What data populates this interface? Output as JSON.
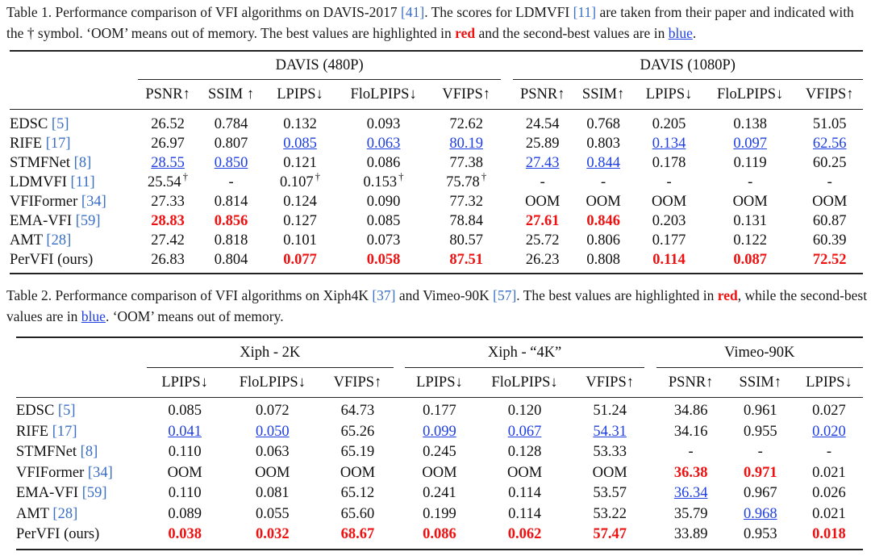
{
  "table1": {
    "caption": {
      "prefix": "Table 1. Performance comparison of VFI algorithms on DAVIS-2017 ",
      "cite_davis": "[41]",
      "mid1": ". The scores for LDMVFI ",
      "cite_ldmvfi": "[11]",
      "mid2": " are taken from their paper and indicated with the † symbol. ‘OOM’ means out of memory. The best values are highlighted in ",
      "red_word": "red",
      "mid3": " and the second-best values are in ",
      "blue_word": "blue",
      "suffix": "."
    },
    "groups": [
      "DAVIS (480P)",
      "DAVIS (1080P)"
    ],
    "metrics": [
      "PSNR↑",
      "SSIM ↑",
      "LPIPS↓",
      "FloLPIPS↓",
      "VFIPS↑",
      "PSNR↑",
      "SSIM↑",
      "LPIPS↓",
      "FloLPIPS↓",
      "VFIPS↑"
    ],
    "rows": [
      {
        "name": "EDSC",
        "cite": "[5]",
        "values": [
          "26.52",
          "0.784",
          "0.132",
          "0.093",
          "72.62",
          "24.54",
          "0.768",
          "0.205",
          "0.138",
          "51.05"
        ]
      },
      {
        "name": "RIFE",
        "cite": "[17]",
        "values": [
          "26.97",
          "0.807",
          "0.085",
          "0.063",
          "80.19",
          "25.89",
          "0.803",
          "0.134",
          "0.097",
          "62.56"
        ]
      },
      {
        "name": "STMFNet",
        "cite": "[8]",
        "values": [
          "28.55",
          "0.850",
          "0.121",
          "0.086",
          "77.38",
          "27.43",
          "0.844",
          "0.178",
          "0.119",
          "60.25"
        ]
      },
      {
        "name": "LDMVFI",
        "cite": "[11]",
        "values": [
          "25.54",
          "-",
          "0.107",
          "0.153",
          "75.78",
          "-",
          "-",
          "-",
          "-",
          "-"
        ],
        "dagger": "†"
      },
      {
        "name": "VFIFormer",
        "cite": "[34]",
        "values": [
          "27.33",
          "0.814",
          "0.124",
          "0.090",
          "77.32",
          "OOM",
          "OOM",
          "OOM",
          "OOM",
          "OOM"
        ]
      },
      {
        "name": "EMA-VFI",
        "cite": "[59]",
        "values": [
          "28.83",
          "0.856",
          "0.127",
          "0.085",
          "78.84",
          "27.61",
          "0.846",
          "0.203",
          "0.131",
          "60.87"
        ]
      },
      {
        "name": "AMT",
        "cite": "[28]",
        "values": [
          "27.42",
          "0.818",
          "0.101",
          "0.073",
          "80.57",
          "25.72",
          "0.806",
          "0.177",
          "0.122",
          "60.39"
        ]
      },
      {
        "name": "PerVFI (ours)",
        "cite": "",
        "values": [
          "26.83",
          "0.804",
          "0.077",
          "0.058",
          "87.51",
          "26.23",
          "0.808",
          "0.114",
          "0.087",
          "72.52"
        ]
      }
    ]
  },
  "table2": {
    "caption": {
      "prefix": "Table 2. Performance comparison of VFI algorithms on Xiph4K ",
      "cite_xiph": "[37]",
      "mid1": " and Vimeo-90K ",
      "cite_vimeo": "[57]",
      "mid2": ". The best values are highlighted in ",
      "red_word": "red",
      "mid3": ", while the second-best values are in ",
      "blue_word": "blue",
      "suffix": ". ‘OOM’ means out of memory."
    },
    "groups": [
      "Xiph - 2K",
      "Xiph - “4K”",
      "Vimeo-90K"
    ],
    "metrics": [
      "LPIPS↓",
      "FloLPIPS↓",
      "VFIPS↑",
      "LPIPS↓",
      "FloLPIPS↓",
      "VFIPS↑",
      "PSNR↑",
      "SSIM↑",
      "LPIPS↓"
    ],
    "rows": [
      {
        "name": "EDSC",
        "cite": "[5]",
        "values": [
          "0.085",
          "0.072",
          "64.73",
          "0.177",
          "0.120",
          "51.24",
          "34.86",
          "0.961",
          "0.027"
        ]
      },
      {
        "name": "RIFE",
        "cite": "[17]",
        "values": [
          "0.041",
          "0.050",
          "65.26",
          "0.099",
          "0.067",
          "54.31",
          "34.16",
          "0.955",
          "0.020"
        ]
      },
      {
        "name": "STMFNet",
        "cite": "[8]",
        "values": [
          "0.110",
          "0.063",
          "65.19",
          "0.245",
          "0.128",
          "53.33",
          "-",
          "-",
          "-"
        ]
      },
      {
        "name": "VFIFormer",
        "cite": "[34]",
        "values": [
          "OOM",
          "OOM",
          "OOM",
          "OOM",
          "OOM",
          "OOM",
          "36.38",
          "0.971",
          "0.021"
        ]
      },
      {
        "name": "EMA-VFI",
        "cite": "[59]",
        "values": [
          "0.110",
          "0.081",
          "65.12",
          "0.241",
          "0.114",
          "53.57",
          "36.34",
          "0.967",
          "0.026"
        ]
      },
      {
        "name": "AMT",
        "cite": "[28]",
        "values": [
          "0.089",
          "0.055",
          "65.60",
          "0.199",
          "0.114",
          "53.22",
          "35.79",
          "0.968",
          "0.021"
        ]
      },
      {
        "name": "PerVFI (ours)",
        "cite": "",
        "values": [
          "0.038",
          "0.032",
          "68.67",
          "0.086",
          "0.062",
          "57.47",
          "33.89",
          "0.953",
          "0.018"
        ]
      }
    ]
  }
}
